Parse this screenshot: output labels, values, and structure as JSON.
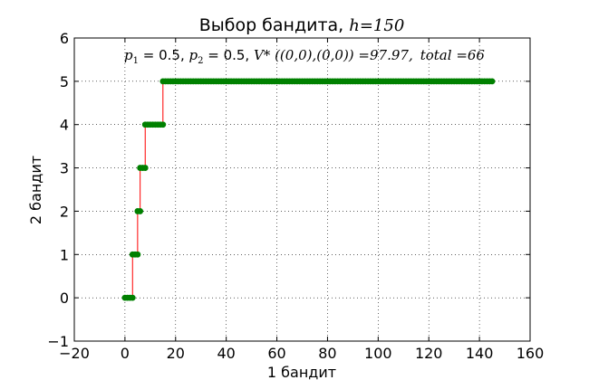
{
  "chart_data": {
    "type": "line",
    "title": {
      "prefix": "Выбор бандита, ",
      "math": "h=150"
    },
    "xlabel": "1 бандит",
    "ylabel": "2 бандит",
    "xlim": [
      -20,
      160
    ],
    "ylim": [
      -1,
      6
    ],
    "xticks": [
      -20,
      0,
      20,
      40,
      60,
      80,
      100,
      120,
      140,
      160
    ],
    "yticks": [
      -1,
      0,
      1,
      2,
      3,
      4,
      5,
      6
    ],
    "xtick_labels": [
      "−20",
      "0",
      "20",
      "40",
      "60",
      "80",
      "100",
      "120",
      "140",
      "160"
    ],
    "ytick_labels": [
      "−1",
      "0",
      "1",
      "2",
      "3",
      "4",
      "5",
      "6"
    ],
    "grid": true,
    "annotation": {
      "p1_label": "p",
      "p1_sub": "1",
      "p1_value": " = 0.5, ",
      "p2_label": "p",
      "p2_sub": "2",
      "p2_value": " = 0.5, ",
      "v_expr": "V* ((0,0),(0,0)) =97.97,",
      "total_expr": "total =66"
    },
    "line_color": "#ff0000",
    "marker_color": "#008000",
    "segments": [
      {
        "y": 0,
        "x_start": 0,
        "x_end": 3
      },
      {
        "y": 1,
        "x_start": 3,
        "x_end": 5
      },
      {
        "y": 2,
        "x_start": 5,
        "x_end": 6
      },
      {
        "y": 3,
        "x_start": 6,
        "x_end": 8
      },
      {
        "y": 4,
        "x_start": 8,
        "x_end": 15
      },
      {
        "y": 5,
        "x_start": 15,
        "x_end": 145
      }
    ]
  }
}
